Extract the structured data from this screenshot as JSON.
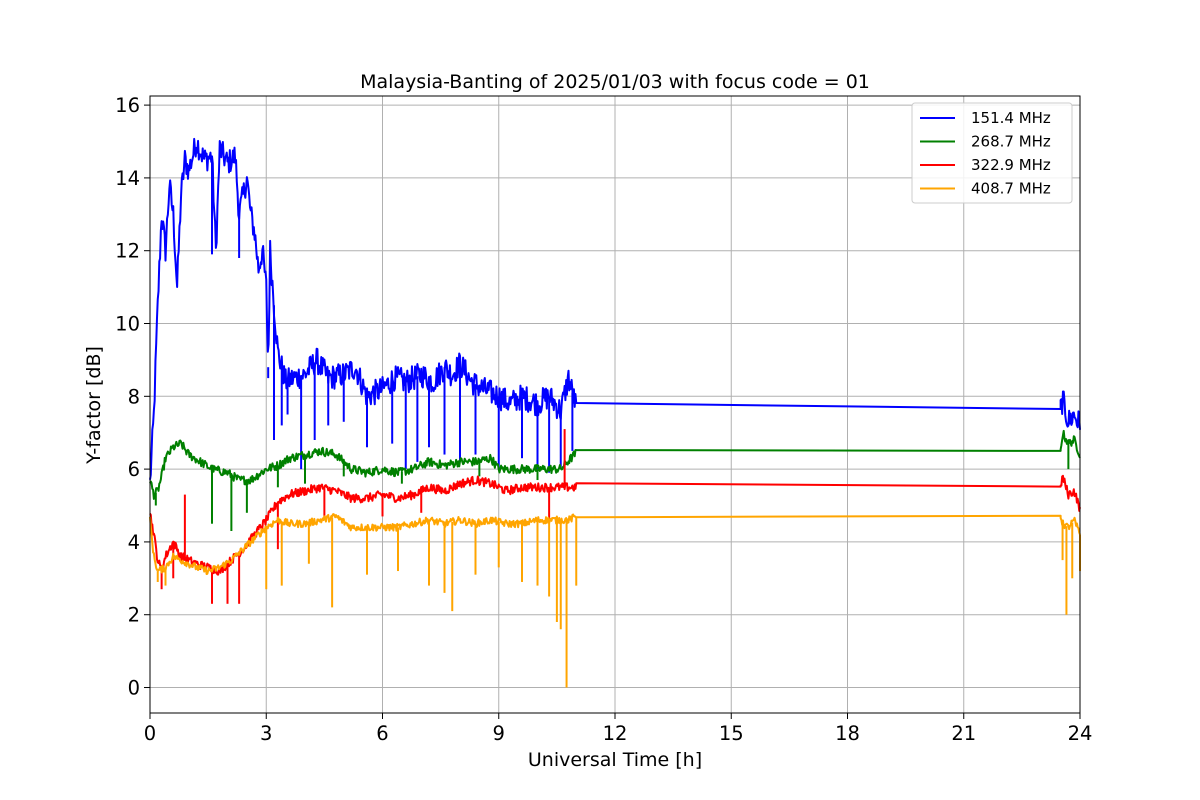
{
  "chart_data": {
    "type": "line",
    "title": "Malaysia-Banting of 2025/01/03 with focus code = 01",
    "xlabel": "Universal Time [h]",
    "ylabel": "Y-factor [dB]",
    "xlim": [
      0,
      24
    ],
    "ylim": [
      -0.7,
      16.25
    ],
    "xticks": [
      0,
      3,
      6,
      9,
      12,
      15,
      18,
      21,
      24
    ],
    "yticks": [
      0,
      2,
      4,
      6,
      8,
      10,
      12,
      14,
      16
    ],
    "grid": true,
    "legend_position": "upper right",
    "series": [
      {
        "name": "151.4 MHz",
        "color": "#0000ff",
        "points": [
          [
            0,
            5.6
          ],
          [
            0.1,
            7.5
          ],
          [
            0.2,
            10.5
          ],
          [
            0.3,
            13.0
          ],
          [
            0.4,
            12.0
          ],
          [
            0.5,
            13.8
          ],
          [
            0.6,
            13.0
          ],
          [
            0.7,
            11.0
          ],
          [
            0.8,
            13.5
          ],
          [
            0.9,
            14.5
          ],
          [
            1.0,
            14.2
          ],
          [
            1.2,
            15.0
          ],
          [
            1.4,
            14.5
          ],
          [
            1.6,
            14.6
          ],
          [
            1.7,
            12.0
          ],
          [
            1.8,
            14.8
          ],
          [
            2.0,
            14.4
          ],
          [
            2.2,
            14.6
          ],
          [
            2.3,
            13.0
          ],
          [
            2.5,
            14.0
          ],
          [
            2.6,
            13.0
          ],
          [
            2.7,
            12.5
          ],
          [
            2.8,
            11.5
          ],
          [
            2.9,
            12.0
          ],
          [
            3.0,
            11.0
          ],
          [
            3.05,
            8.8
          ],
          [
            3.1,
            12.0
          ],
          [
            3.2,
            10.5
          ],
          [
            3.3,
            9.2
          ],
          [
            3.5,
            8.4
          ],
          [
            3.7,
            8.5
          ],
          [
            4.0,
            8.6
          ],
          [
            4.3,
            9.0
          ],
          [
            4.6,
            8.5
          ],
          [
            5.0,
            8.6
          ],
          [
            5.3,
            8.8
          ],
          [
            5.6,
            8.0
          ],
          [
            6.0,
            8.2
          ],
          [
            6.3,
            8.5
          ],
          [
            6.6,
            8.4
          ],
          [
            7.0,
            8.6
          ],
          [
            7.3,
            8.4
          ],
          [
            7.6,
            8.8
          ],
          [
            7.8,
            8.6
          ],
          [
            8.0,
            8.9
          ],
          [
            8.3,
            8.4
          ],
          [
            8.6,
            8.2
          ],
          [
            9.0,
            8.0
          ],
          [
            9.3,
            7.8
          ],
          [
            9.6,
            8.0
          ],
          [
            10.0,
            7.8
          ],
          [
            10.3,
            8.0
          ],
          [
            10.6,
            7.6
          ],
          [
            10.8,
            8.5
          ],
          [
            11.0,
            7.7
          ],
          [
            23.5,
            7.65
          ],
          [
            23.55,
            7.9
          ],
          [
            23.7,
            7.3
          ],
          [
            23.85,
            7.5
          ],
          [
            24.0,
            7.2
          ]
        ],
        "dips": [
          [
            1.6,
            11.9
          ],
          [
            2.3,
            11.8
          ],
          [
            3.05,
            8.5
          ],
          [
            3.2,
            6.8
          ],
          [
            3.4,
            7.2
          ],
          [
            3.55,
            7.5
          ],
          [
            3.9,
            6.0
          ],
          [
            4.25,
            6.8
          ],
          [
            4.6,
            7.2
          ],
          [
            5.0,
            7.3
          ],
          [
            5.6,
            6.6
          ],
          [
            6.25,
            6.7
          ],
          [
            6.6,
            6.0
          ],
          [
            6.9,
            6.2
          ],
          [
            7.2,
            6.6
          ],
          [
            7.6,
            6.4
          ],
          [
            8.0,
            6.2
          ],
          [
            8.4,
            6.4
          ],
          [
            9.0,
            6.0
          ],
          [
            9.6,
            6.3
          ],
          [
            10.0,
            6.0
          ],
          [
            10.3,
            5.9
          ],
          [
            10.6,
            6.0
          ],
          [
            10.9,
            6.5
          ]
        ]
      },
      {
        "name": "268.7 MHz",
        "color": "#008000",
        "points": [
          [
            0,
            5.7
          ],
          [
            0.1,
            5.3
          ],
          [
            0.2,
            5.4
          ],
          [
            0.3,
            5.8
          ],
          [
            0.4,
            6.3
          ],
          [
            0.6,
            6.6
          ],
          [
            0.8,
            6.7
          ],
          [
            1.0,
            6.4
          ],
          [
            1.3,
            6.2
          ],
          [
            1.6,
            6.0
          ],
          [
            2.0,
            5.9
          ],
          [
            2.3,
            5.7
          ],
          [
            2.6,
            5.7
          ],
          [
            3.0,
            6.0
          ],
          [
            3.3,
            6.1
          ],
          [
            3.6,
            6.3
          ],
          [
            4.0,
            6.4
          ],
          [
            4.4,
            6.5
          ],
          [
            4.8,
            6.4
          ],
          [
            5.2,
            6.0
          ],
          [
            5.6,
            5.9
          ],
          [
            6.0,
            6.0
          ],
          [
            6.4,
            5.9
          ],
          [
            6.8,
            6.0
          ],
          [
            7.2,
            6.2
          ],
          [
            7.6,
            6.1
          ],
          [
            8.0,
            6.2
          ],
          [
            8.4,
            6.2
          ],
          [
            8.8,
            6.3
          ],
          [
            9.0,
            6.0
          ],
          [
            9.4,
            6.0
          ],
          [
            9.8,
            6.0
          ],
          [
            10.2,
            6.0
          ],
          [
            10.6,
            6.0
          ],
          [
            11.0,
            6.45
          ],
          [
            23.5,
            6.5
          ],
          [
            23.55,
            7.0
          ],
          [
            23.7,
            6.7
          ],
          [
            23.85,
            6.8
          ],
          [
            24.0,
            6.4
          ]
        ],
        "dips": [
          [
            0.15,
            5.0
          ],
          [
            1.6,
            4.5
          ],
          [
            2.1,
            4.3
          ],
          [
            2.5,
            4.8
          ],
          [
            3.3,
            5.5
          ],
          [
            4.0,
            5.6
          ],
          [
            5.0,
            5.8
          ],
          [
            6.5,
            5.6
          ],
          [
            8.5,
            5.8
          ],
          [
            10.0,
            5.7
          ],
          [
            23.7,
            6.0
          ]
        ]
      },
      {
        "name": "322.9 MHz",
        "color": "#ff0000",
        "points": [
          [
            0,
            4.8
          ],
          [
            0.1,
            4.2
          ],
          [
            0.2,
            3.5
          ],
          [
            0.3,
            3.2
          ],
          [
            0.4,
            3.6
          ],
          [
            0.6,
            4.0
          ],
          [
            0.8,
            3.6
          ],
          [
            1.0,
            3.5
          ],
          [
            1.2,
            3.4
          ],
          [
            1.5,
            3.3
          ],
          [
            1.8,
            3.2
          ],
          [
            2.1,
            3.5
          ],
          [
            2.4,
            3.8
          ],
          [
            2.7,
            4.2
          ],
          [
            3.0,
            4.6
          ],
          [
            3.3,
            5.1
          ],
          [
            3.6,
            5.3
          ],
          [
            4.0,
            5.4
          ],
          [
            4.4,
            5.5
          ],
          [
            4.8,
            5.4
          ],
          [
            5.2,
            5.2
          ],
          [
            5.6,
            5.2
          ],
          [
            6.0,
            5.3
          ],
          [
            6.4,
            5.2
          ],
          [
            6.8,
            5.3
          ],
          [
            7.2,
            5.5
          ],
          [
            7.6,
            5.4
          ],
          [
            8.0,
            5.6
          ],
          [
            8.4,
            5.7
          ],
          [
            8.8,
            5.6
          ],
          [
            9.2,
            5.4
          ],
          [
            9.6,
            5.5
          ],
          [
            10.0,
            5.5
          ],
          [
            10.4,
            5.5
          ],
          [
            10.7,
            5.5
          ],
          [
            11.0,
            5.5
          ],
          [
            23.5,
            5.52
          ],
          [
            23.55,
            5.8
          ],
          [
            23.7,
            5.3
          ],
          [
            23.85,
            5.4
          ],
          [
            24.0,
            4.9
          ]
        ],
        "dips": [
          [
            0.3,
            2.7
          ],
          [
            0.6,
            3.0
          ],
          [
            0.9,
            5.3
          ],
          [
            1.6,
            2.3
          ],
          [
            2.0,
            2.3
          ],
          [
            2.3,
            2.3
          ],
          [
            3.3,
            3.8
          ],
          [
            4.5,
            4.6
          ],
          [
            6.0,
            4.7
          ],
          [
            7.0,
            4.8
          ],
          [
            10.3,
            4.6
          ],
          [
            10.7,
            7.1
          ]
        ]
      },
      {
        "name": "408.7 MHz",
        "color": "#ffa500",
        "points": [
          [
            0,
            4.6
          ],
          [
            0.1,
            3.6
          ],
          [
            0.2,
            3.2
          ],
          [
            0.4,
            3.3
          ],
          [
            0.6,
            3.6
          ],
          [
            0.8,
            3.5
          ],
          [
            1.0,
            3.4
          ],
          [
            1.2,
            3.3
          ],
          [
            1.5,
            3.2
          ],
          [
            1.8,
            3.3
          ],
          [
            2.1,
            3.5
          ],
          [
            2.4,
            3.8
          ],
          [
            2.7,
            4.1
          ],
          [
            3.0,
            4.4
          ],
          [
            3.3,
            4.6
          ],
          [
            3.6,
            4.5
          ],
          [
            4.0,
            4.5
          ],
          [
            4.4,
            4.6
          ],
          [
            4.8,
            4.7
          ],
          [
            5.2,
            4.4
          ],
          [
            5.6,
            4.4
          ],
          [
            6.0,
            4.4
          ],
          [
            6.4,
            4.4
          ],
          [
            6.8,
            4.5
          ],
          [
            7.2,
            4.6
          ],
          [
            7.6,
            4.5
          ],
          [
            8.0,
            4.6
          ],
          [
            8.4,
            4.5
          ],
          [
            8.8,
            4.6
          ],
          [
            9.2,
            4.5
          ],
          [
            9.6,
            4.5
          ],
          [
            10.0,
            4.6
          ],
          [
            10.4,
            4.6
          ],
          [
            10.8,
            4.6
          ],
          [
            11.0,
            4.7
          ],
          [
            23.5,
            4.72
          ],
          [
            23.55,
            4.5
          ],
          [
            23.7,
            4.4
          ],
          [
            23.85,
            4.6
          ],
          [
            24.0,
            4.2
          ]
        ],
        "dips": [
          [
            0.2,
            2.9
          ],
          [
            0.4,
            2.8
          ],
          [
            3.0,
            2.7
          ],
          [
            3.4,
            2.8
          ],
          [
            4.1,
            3.4
          ],
          [
            4.7,
            2.2
          ],
          [
            5.6,
            3.1
          ],
          [
            6.4,
            3.2
          ],
          [
            7.2,
            2.8
          ],
          [
            7.6,
            2.6
          ],
          [
            7.8,
            2.1
          ],
          [
            8.4,
            3.1
          ],
          [
            9.0,
            3.3
          ],
          [
            9.6,
            2.9
          ],
          [
            10.0,
            2.8
          ],
          [
            10.3,
            2.5
          ],
          [
            10.5,
            1.8
          ],
          [
            10.6,
            1.6
          ],
          [
            10.75,
            0.0
          ],
          [
            11.0,
            2.8
          ],
          [
            23.55,
            3.5
          ],
          [
            23.65,
            2.0
          ],
          [
            23.8,
            3.0
          ],
          [
            24.0,
            3.2
          ]
        ]
      }
    ]
  }
}
